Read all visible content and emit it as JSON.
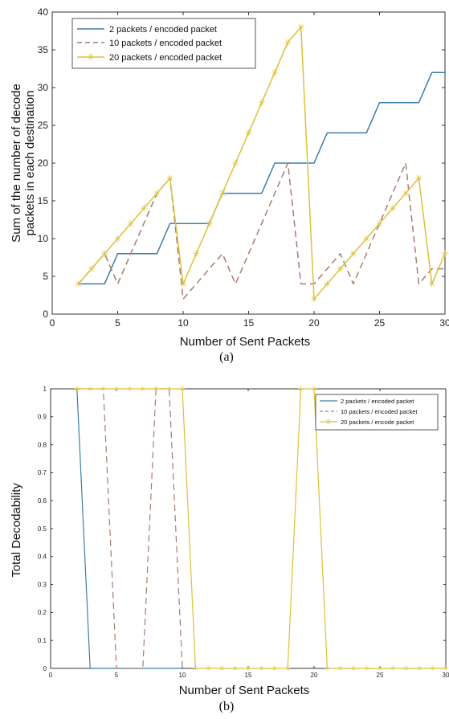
{
  "colors": {
    "series1": "#3f7ea6",
    "series2": "#a67d6e",
    "series3": "#dcc13c",
    "axis": "#333333",
    "grid": "none"
  },
  "chart_data": [
    {
      "type": "line",
      "caption": "(a)",
      "xlabel": "Number of Sent Packets",
      "ylabel_lines": [
        "Sum of the number of decode",
        "packets in each destination"
      ],
      "xlim": [
        0,
        30
      ],
      "ylim": [
        0,
        40
      ],
      "xticks": [
        0,
        5,
        10,
        15,
        20,
        25,
        30
      ],
      "yticks": [
        0,
        5,
        10,
        15,
        20,
        25,
        30,
        35,
        40
      ],
      "grid": false,
      "legend_position": "top-left",
      "series": [
        {
          "name": "2 packets / encoded packet",
          "style": "solid",
          "color": "#3f7ea6",
          "marker": "none",
          "x": [
            2,
            3,
            4,
            5,
            6,
            7,
            8,
            9,
            10,
            11,
            12,
            13,
            14,
            15,
            16,
            17,
            18,
            19,
            20,
            21,
            22,
            23,
            24,
            25,
            26,
            27,
            28,
            29,
            30
          ],
          "y": [
            4,
            4,
            4,
            8,
            8,
            8,
            8,
            12,
            12,
            12,
            12,
            16,
            16,
            16,
            16,
            20,
            20,
            20,
            20,
            24,
            24,
            24,
            24,
            28,
            28,
            28,
            28,
            32,
            32
          ]
        },
        {
          "name": "10 packets / encoded packet",
          "style": "dashed",
          "color": "#a67d6e",
          "marker": "none",
          "x": [
            2,
            3,
            4,
            5,
            6,
            7,
            8,
            9,
            10,
            11,
            12,
            13,
            14,
            15,
            16,
            17,
            18,
            19,
            20,
            21,
            22,
            23,
            24,
            25,
            26,
            27,
            28,
            29,
            30
          ],
          "y": [
            4,
            6,
            8,
            4,
            8,
            12,
            16,
            18,
            2,
            4,
            6,
            8,
            4,
            8,
            12,
            16,
            20,
            4,
            4,
            6,
            8,
            4,
            8,
            12,
            16,
            20,
            4,
            6,
            6
          ]
        },
        {
          "name": "20 packets / encoded packet",
          "style": "solid",
          "color": "#dcc13c",
          "marker": "star",
          "x": [
            2,
            3,
            4,
            5,
            6,
            7,
            8,
            9,
            10,
            11,
            12,
            13,
            14,
            15,
            16,
            17,
            18,
            19,
            20,
            21,
            22,
            23,
            24,
            25,
            26,
            27,
            28,
            29,
            30
          ],
          "y": [
            4,
            6,
            8,
            10,
            12,
            14,
            16,
            18,
            4,
            8,
            12,
            16,
            20,
            24,
            28,
            32,
            36,
            38,
            2,
            4,
            6,
            8,
            10,
            12,
            14,
            16,
            18,
            4,
            8
          ]
        }
      ]
    },
    {
      "type": "line",
      "caption": "(b)",
      "xlabel": "Number of Sent Packets",
      "ylabel": "Total Decodability",
      "xlim": [
        0,
        30
      ],
      "ylim": [
        0,
        1
      ],
      "xticks": [
        0,
        5,
        10,
        15,
        20,
        25,
        30
      ],
      "yticks": [
        0,
        0.1,
        0.2,
        0.3,
        0.4,
        0.5,
        0.6,
        0.7,
        0.8,
        0.9,
        1
      ],
      "grid": false,
      "legend_position": "top-right",
      "series": [
        {
          "name": "2 packets / encoded packet",
          "style": "solid",
          "color": "#3f7ea6",
          "marker": "none",
          "x": [
            2,
            3,
            4,
            5,
            6,
            7,
            8,
            9,
            10
          ],
          "y": [
            1,
            0,
            0,
            0,
            0,
            0,
            0,
            0,
            0
          ]
        },
        {
          "name": "10 packets / encoded packet",
          "style": "dashed",
          "color": "#a67d6e",
          "marker": "none",
          "x": [
            2,
            3,
            4,
            5,
            6,
            7,
            8,
            9,
            10
          ],
          "y": [
            1,
            1,
            1,
            0,
            0,
            0,
            1,
            1,
            0
          ]
        },
        {
          "name": "20 packets / encode packet",
          "style": "solid",
          "color": "#dcc13c",
          "marker": "star",
          "x": [
            2,
            3,
            4,
            5,
            6,
            7,
            8,
            9,
            10,
            11,
            12,
            13,
            14,
            15,
            16,
            17,
            18,
            19,
            20,
            21,
            22,
            23,
            24,
            25,
            26,
            27,
            28,
            29,
            30
          ],
          "y": [
            1,
            1,
            1,
            1,
            1,
            1,
            1,
            1,
            1,
            0,
            0,
            0,
            0,
            0,
            0,
            0,
            0,
            1,
            1,
            0,
            0,
            0,
            0,
            0,
            0,
            0,
            0,
            0,
            0
          ]
        }
      ]
    }
  ]
}
